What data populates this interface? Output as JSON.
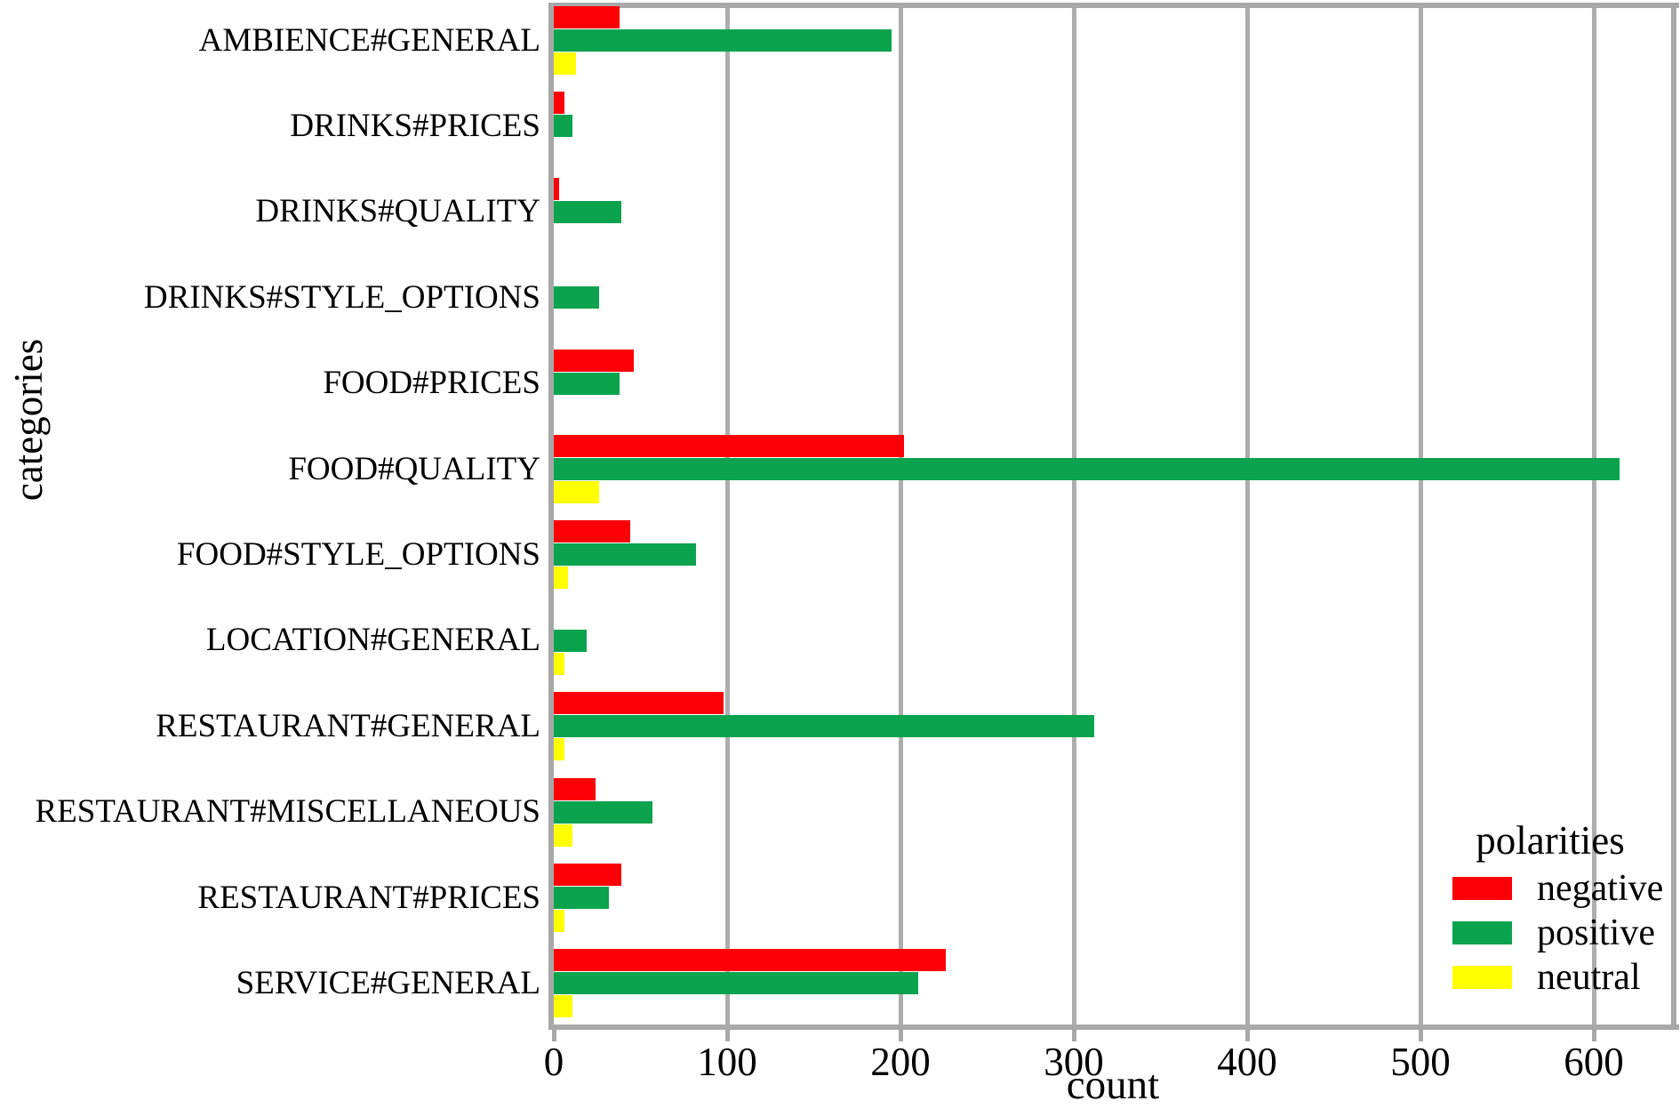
{
  "chart_data": {
    "type": "bar",
    "orientation": "horizontal",
    "title": "",
    "xlabel": "count",
    "ylabel": "categories",
    "xticks": [
      0,
      100,
      200,
      300,
      400,
      500,
      600
    ],
    "xlim": [
      0,
      646
    ],
    "grid": "vertical",
    "legend": {
      "title": "polarities",
      "position": "inside-right-bottom"
    },
    "categories": [
      "AMBIENCE#GENERAL",
      "DRINKS#PRICES",
      "DRINKS#QUALITY",
      "DRINKS#STYLE_OPTIONS",
      "FOOD#PRICES",
      "FOOD#QUALITY",
      "FOOD#STYLE_OPTIONS",
      "LOCATION#GENERAL",
      "RESTAURANT#GENERAL",
      "RESTAURANT#MISCELLANEOUS",
      "RESTAURANT#PRICES",
      "SERVICE#GENERAL"
    ],
    "series": [
      {
        "name": "negative",
        "color": "#fb0007",
        "values": [
          38,
          6,
          3,
          0,
          46,
          202,
          44,
          0,
          98,
          24,
          39,
          226
        ]
      },
      {
        "name": "positive",
        "color": "#0ca34e",
        "values": [
          195,
          11,
          39,
          26,
          38,
          615,
          82,
          19,
          312,
          57,
          32,
          210
        ]
      },
      {
        "name": "neutral",
        "color": "#ffff00",
        "values": [
          13,
          0,
          0,
          0,
          0,
          26,
          8,
          6,
          6,
          11,
          6,
          11
        ]
      }
    ]
  },
  "colors": {
    "grid": "#adadad",
    "text": "#000000",
    "background": "#ffffff"
  }
}
